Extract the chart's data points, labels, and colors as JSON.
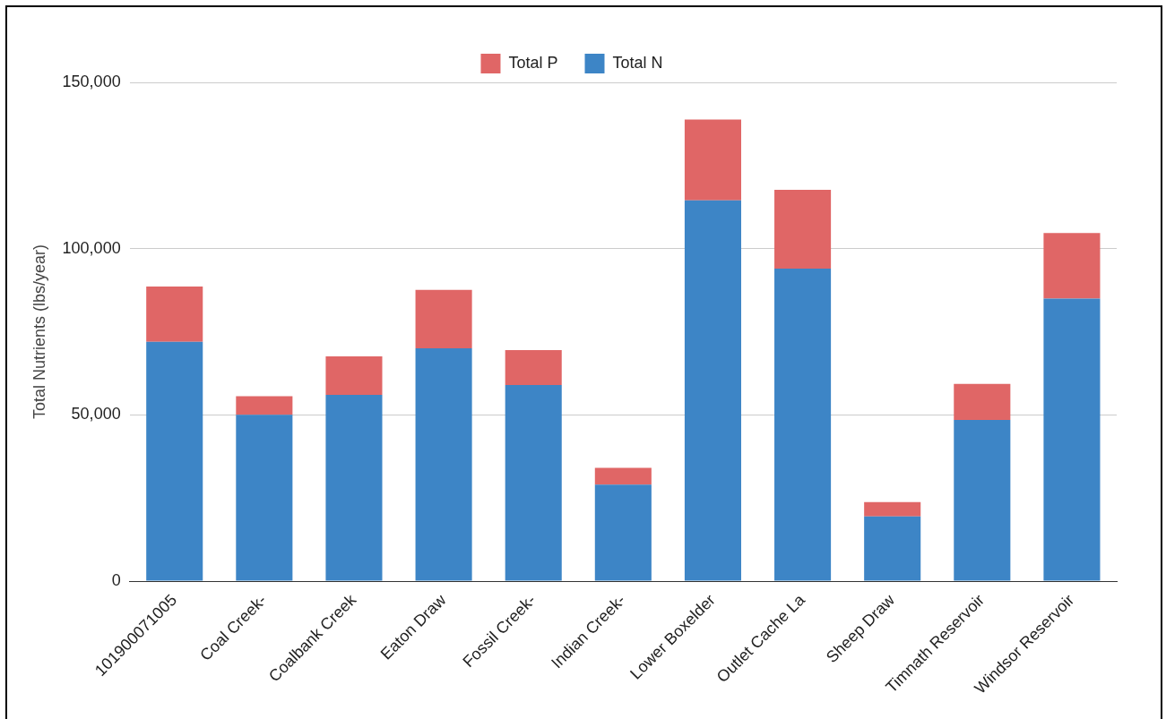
{
  "chart_data": {
    "type": "bar",
    "ylabel": "Total Nutrients (lbs/year)",
    "categories": [
      "101900071005",
      "Coal Creek-",
      "Coalbank Creek",
      "Eaton Draw",
      "Fossil Creek-",
      "Indian Creek-",
      "Lower Boxelder",
      "Outlet Cache La",
      "Sheep Draw",
      "Timnath Reservoir",
      "Windsor Reservoir"
    ],
    "series": [
      {
        "name": "Total N",
        "color": "#3d85c6",
        "values": [
          72000,
          50000,
          56000,
          70000,
          59000,
          29000,
          114500,
          94000,
          19500,
          48500,
          85000
        ]
      },
      {
        "name": "Total P",
        "color": "#e06666",
        "values": [
          16600,
          5600,
          11600,
          17600,
          10500,
          5100,
          24300,
          23700,
          4300,
          10800,
          19700
        ]
      }
    ],
    "stacked": true,
    "ylim": [
      0,
      150000
    ],
    "yticks": [
      {
        "value": 0,
        "label": "0"
      },
      {
        "value": 50000,
        "label": "50,000"
      },
      {
        "value": 100000,
        "label": "100,000"
      },
      {
        "value": 150000,
        "label": "150,000"
      }
    ],
    "grid": "y",
    "legend": "top"
  }
}
